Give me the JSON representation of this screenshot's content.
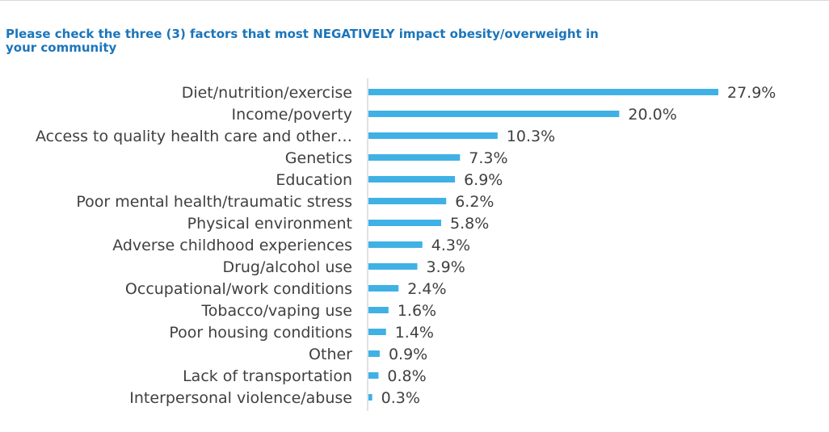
{
  "chart_data": {
    "type": "bar",
    "orientation": "horizontal",
    "title": "Please check the three (3) factors that most NEGATIVELY impact obesity/overweight in your community",
    "categories": [
      "Diet/nutrition/exercise",
      "Income/poverty",
      "Access to quality health care and other…",
      "Genetics",
      "Education",
      "Poor mental health/traumatic stress",
      "Physical environment",
      "Adverse childhood experiences",
      "Drug/alcohol use",
      "Occupational/work conditions",
      "Tobacco/vaping use",
      "Poor housing conditions",
      "Other",
      "Lack of transportation",
      "Interpersonal violence/abuse"
    ],
    "values": [
      27.9,
      20.0,
      10.3,
      7.3,
      6.9,
      6.2,
      5.8,
      4.3,
      3.9,
      2.4,
      1.6,
      1.4,
      0.9,
      0.8,
      0.3
    ],
    "value_labels": [
      "27.9%",
      "20.0%",
      "10.3%",
      "7.3%",
      "6.9%",
      "6.2%",
      "5.8%",
      "4.3%",
      "3.9%",
      "2.4%",
      "1.6%",
      "1.4%",
      "0.9%",
      "0.8%",
      "0.3%"
    ],
    "unit": "%",
    "xlim": [
      0,
      30
    ],
    "grid": false,
    "legend": "none",
    "bar_color": "#3fb1e5",
    "title_color": "#1b75bb",
    "text_color": "#404040",
    "axis_color": "#d9d9d9"
  }
}
